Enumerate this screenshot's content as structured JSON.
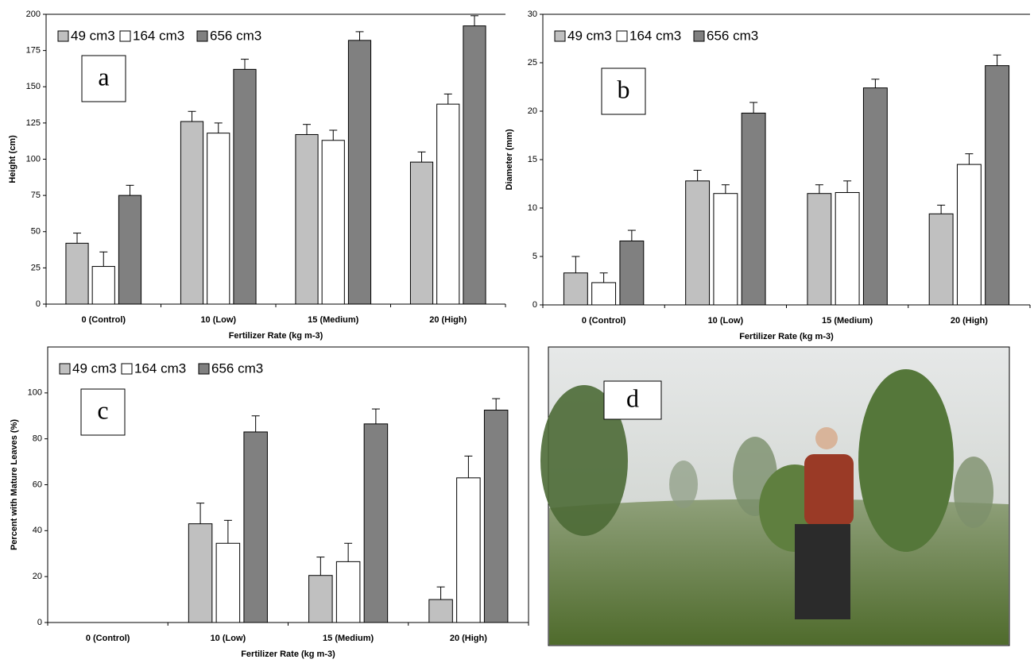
{
  "chart_data": [
    {
      "type": "bar",
      "panel": "a",
      "y_label": "Height (cm)",
      "x_label": "Fertilizer Rate (kg m-3)",
      "categories": [
        "0 (Control)",
        "10 (Low)",
        "15 (Medium)",
        "20 (High)"
      ],
      "series": [
        {
          "name": "49 cm3",
          "color": "#c0c0c0",
          "values": [
            42,
            126,
            117,
            98
          ],
          "errors": [
            7,
            7,
            7,
            7
          ]
        },
        {
          "name": "164 cm3",
          "color": "#ffffff",
          "values": [
            26,
            118,
            113,
            138
          ],
          "errors": [
            10,
            7,
            7,
            7
          ]
        },
        {
          "name": "656 cm3",
          "color": "#808080",
          "values": [
            75,
            162,
            182,
            192
          ],
          "errors": [
            7,
            7,
            6,
            7
          ]
        }
      ],
      "ylim": [
        0,
        200
      ],
      "yticks": [
        0,
        25,
        50,
        75,
        100,
        125,
        150,
        175,
        200
      ]
    },
    {
      "type": "bar",
      "panel": "b",
      "y_label": "Diameter (mm)",
      "x_label": "Fertilizer Rate (kg m-3)",
      "categories": [
        "0 (Control)",
        "10 (Low)",
        "15 (Medium)",
        "20 (High)"
      ],
      "series": [
        {
          "name": "49 cm3",
          "color": "#c0c0c0",
          "values": [
            3.3,
            12.8,
            11.5,
            9.4
          ],
          "errors": [
            1.7,
            1.1,
            0.9,
            0.9
          ]
        },
        {
          "name": "164 cm3",
          "color": "#ffffff",
          "values": [
            2.3,
            11.5,
            11.6,
            14.5
          ],
          "errors": [
            1.0,
            0.9,
            1.2,
            1.1
          ]
        },
        {
          "name": "656 cm3",
          "color": "#808080",
          "values": [
            6.6,
            19.8,
            22.4,
            24.7
          ],
          "errors": [
            1.1,
            1.1,
            0.9,
            1.1
          ]
        }
      ],
      "ylim": [
        0,
        30
      ],
      "yticks": [
        0,
        5,
        10,
        15,
        20,
        25,
        30
      ]
    },
    {
      "type": "bar",
      "panel": "c",
      "y_label": "Percent with Mature Leaves (%)",
      "x_label": "Fertilizer Rate (kg m-3)",
      "categories": [
        "0 (Control)",
        "10 (Low)",
        "15 (Medium)",
        "20 (High)"
      ],
      "series": [
        {
          "name": "49 cm3",
          "color": "#c0c0c0",
          "values": [
            null,
            43,
            20.5,
            10
          ],
          "errors": [
            null,
            9,
            8,
            5.5
          ]
        },
        {
          "name": "164 cm3",
          "color": "#ffffff",
          "values": [
            null,
            34.5,
            26.5,
            63
          ],
          "errors": [
            null,
            10,
            8,
            9.5
          ]
        },
        {
          "name": "656 cm3",
          "color": "#808080",
          "values": [
            null,
            83,
            86.5,
            92.5
          ],
          "errors": [
            null,
            7,
            6.5,
            5
          ]
        }
      ],
      "ylim": [
        0,
        120
      ],
      "yticks": [
        0,
        20,
        40,
        60,
        80,
        100
      ]
    }
  ],
  "photo": {
    "panel": "d"
  }
}
